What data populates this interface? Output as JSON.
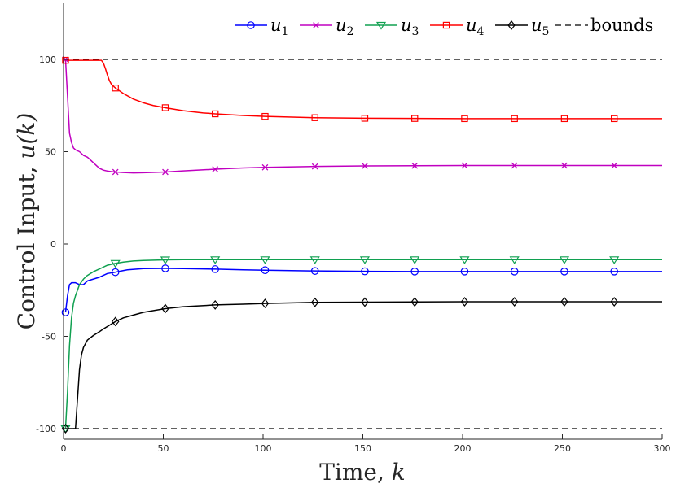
{
  "chart_data": {
    "type": "line",
    "title": "",
    "xlabel": "Time, ",
    "xlabel_var": "k",
    "ylabel": "Control Input, ",
    "ylabel_var": "u(k)",
    "xlim": [
      0,
      300
    ],
    "ylim": [
      -105,
      130
    ],
    "xticks": [
      0,
      50,
      100,
      150,
      200,
      250,
      300
    ],
    "yticks": [
      -100,
      -50,
      0,
      50,
      100
    ],
    "xtick_labels": [
      "0",
      "50",
      "100",
      "150",
      "200",
      "250",
      "300"
    ],
    "ytick_labels": [
      "-100",
      "-50",
      "0",
      "50",
      "100"
    ],
    "grid": false,
    "legend_position": "top-right",
    "bounds": {
      "name": "bounds",
      "upper": 100,
      "lower": -100,
      "color": "#000000",
      "style": "dashed"
    },
    "series": [
      {
        "name": "u",
        "sub": "1",
        "color": "#0000ff",
        "marker": "circle",
        "x": [
          1,
          2,
          3,
          4,
          5,
          6,
          8,
          10,
          12,
          15,
          18,
          20,
          22,
          25,
          28,
          32,
          40,
          51,
          60,
          76,
          90,
          101,
          126,
          151,
          176,
          201,
          226,
          251,
          276,
          300
        ],
        "y": [
          -37,
          -28,
          -22,
          -21,
          -21,
          -21,
          -22,
          -22,
          -20,
          -19,
          -18,
          -17,
          -16,
          -15.5,
          -14.8,
          -14,
          -13.3,
          -13.2,
          -13.3,
          -13.6,
          -14,
          -14.2,
          -14.6,
          -14.8,
          -14.9,
          -14.9,
          -14.9,
          -14.9,
          -14.9,
          -14.9
        ],
        "marker_x": [
          1,
          26,
          51,
          76,
          101,
          126,
          151,
          176,
          201,
          226,
          251,
          276
        ]
      },
      {
        "name": "u",
        "sub": "2",
        "color": "#c000c0",
        "marker": "x",
        "x": [
          1,
          2,
          3,
          4,
          5,
          6,
          8,
          10,
          12,
          14,
          16,
          18,
          20,
          22,
          24,
          26,
          30,
          35,
          40,
          51,
          60,
          76,
          90,
          101,
          126,
          151,
          176,
          201,
          226,
          251,
          276,
          300
        ],
        "y": [
          100,
          80,
          60,
          55,
          52,
          51,
          50,
          48,
          47,
          45,
          43,
          41,
          40,
          39.5,
          39.2,
          39,
          38.7,
          38.5,
          38.6,
          39,
          39.6,
          40.5,
          41.2,
          41.5,
          42,
          42.3,
          42.4,
          42.5,
          42.5,
          42.5,
          42.5,
          42.5
        ],
        "marker_x": [
          1,
          26,
          51,
          76,
          101,
          126,
          151,
          176,
          201,
          226,
          251,
          276
        ]
      },
      {
        "name": "u",
        "sub": "3",
        "color": "#10a050",
        "marker": "triangle-down",
        "x": [
          1,
          2,
          3,
          4,
          5,
          6,
          7,
          8,
          10,
          12,
          15,
          18,
          20,
          22,
          26,
          30,
          35,
          40,
          51,
          60,
          76,
          101,
          126,
          151,
          176,
          201,
          226,
          251,
          276,
          300
        ],
        "y": [
          -100,
          -80,
          -55,
          -40,
          -32,
          -28,
          -25,
          -22,
          -19,
          -17,
          -15,
          -13.5,
          -12.5,
          -11.5,
          -10.5,
          -9.8,
          -9.2,
          -8.9,
          -8.6,
          -8.5,
          -8.5,
          -8.5,
          -8.5,
          -8.5,
          -8.5,
          -8.5,
          -8.5,
          -8.5,
          -8.5,
          -8.5
        ],
        "marker_x": [
          1,
          26,
          51,
          76,
          101,
          126,
          151,
          176,
          201,
          226,
          251,
          276
        ]
      },
      {
        "name": "u",
        "sub": "4",
        "color": "#ff0000",
        "marker": "square",
        "x": [
          1,
          5,
          10,
          15,
          19,
          20,
          21,
          22,
          23,
          24,
          26,
          30,
          35,
          40,
          45,
          51,
          60,
          70,
          76,
          90,
          101,
          126,
          151,
          176,
          201,
          226,
          251,
          276,
          300
        ],
        "y": [
          99.5,
          99.5,
          99.5,
          99.5,
          99.5,
          98,
          95,
          91.5,
          88.5,
          86.5,
          84.5,
          81.5,
          78.5,
          76.5,
          75,
          73.8,
          72.2,
          71,
          70.5,
          69.6,
          69.1,
          68.4,
          68.1,
          68,
          67.9,
          67.9,
          67.9,
          67.9,
          67.9
        ],
        "marker_x": [
          1,
          26,
          51,
          76,
          101,
          126,
          151,
          176,
          201,
          226,
          251,
          276
        ]
      },
      {
        "name": "u",
        "sub": "5",
        "color": "#000000",
        "marker": "diamond",
        "x": [
          1,
          2,
          3,
          4,
          5,
          6,
          7,
          8,
          9,
          10,
          12,
          15,
          18,
          20,
          23,
          26,
          30,
          35,
          40,
          51,
          60,
          76,
          90,
          101,
          126,
          151,
          176,
          201,
          226,
          251,
          276,
          300
        ],
        "y": [
          -100,
          -100,
          -100,
          -100,
          -100,
          -100,
          -84,
          -68,
          -60,
          -56,
          -52,
          -49.5,
          -47.5,
          -46,
          -44,
          -42,
          -40,
          -38.5,
          -37,
          -35,
          -34,
          -33,
          -32.6,
          -32.2,
          -31.6,
          -31.5,
          -31.4,
          -31.3,
          -31.3,
          -31.3,
          -31.3,
          -31.3
        ],
        "marker_x": [
          1,
          26,
          51,
          76,
          101,
          126,
          151,
          176,
          201,
          226,
          251,
          276
        ]
      }
    ]
  }
}
